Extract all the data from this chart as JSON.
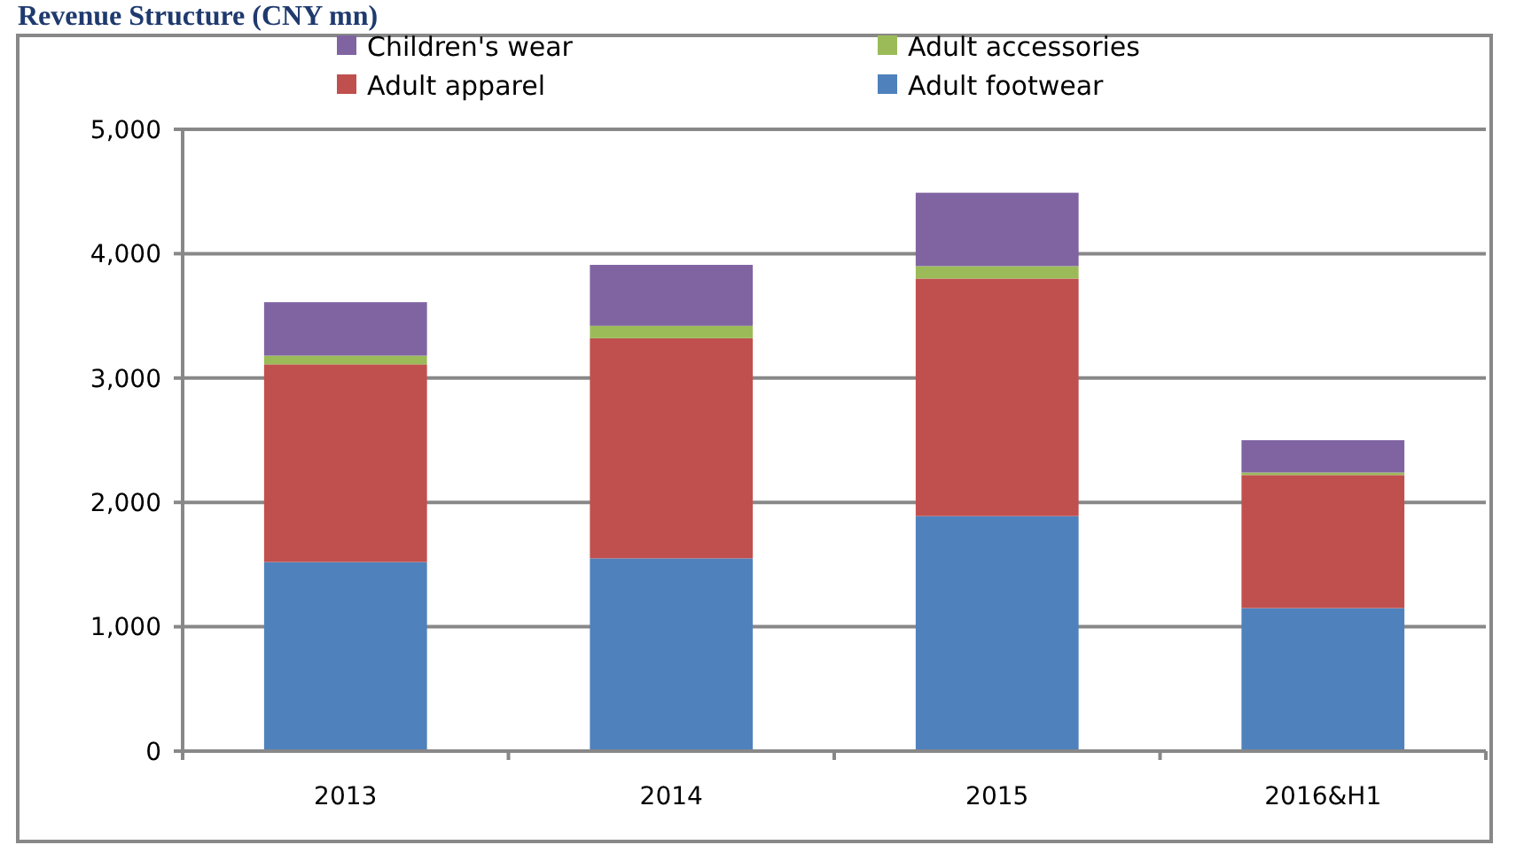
{
  "chart_data": {
    "type": "bar",
    "title": "Revenue Structure (CNY mn)",
    "categories": [
      "2013",
      "2014",
      "2015",
      "2016&H1"
    ],
    "stacked": true,
    "series": [
      {
        "name": "Adult footwear",
        "color": "#4f81bd",
        "values": [
          1520,
          1550,
          1890,
          1150
        ]
      },
      {
        "name": "Adult apparel",
        "color": "#c0504d",
        "values": [
          1590,
          1770,
          1910,
          1070
        ]
      },
      {
        "name": "Adult accessories",
        "color": "#9bbb59",
        "values": [
          70,
          100,
          100,
          20
        ]
      },
      {
        "name": "Children's wear",
        "color": "#8064a2",
        "values": [
          430,
          490,
          590,
          260
        ]
      }
    ],
    "ylim": [
      0,
      5000
    ],
    "yticks": [
      {
        "value": 0,
        "label": "0"
      },
      {
        "value": 1000,
        "label": "1,000"
      },
      {
        "value": 2000,
        "label": "2,000"
      },
      {
        "value": 3000,
        "label": "3,000"
      },
      {
        "value": 4000,
        "label": "4,000"
      },
      {
        "value": 5000,
        "label": "5,000"
      }
    ],
    "grid": "y",
    "legend": "top"
  }
}
